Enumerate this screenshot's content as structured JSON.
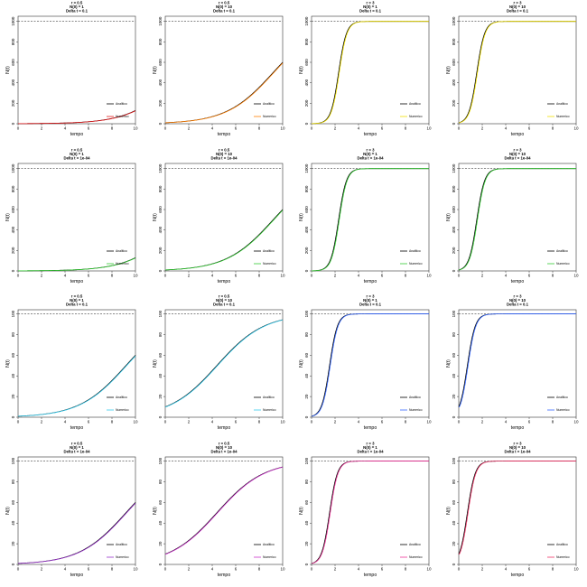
{
  "chart_data": [
    {
      "type": "line",
      "title": [
        "r = 0.5",
        "N(0) = 1",
        "Delta t = 0.1"
      ],
      "xlabel": "tempo",
      "ylabel": "N(t)",
      "xlim": [
        0,
        10
      ],
      "ylim": [
        0,
        1050
      ],
      "x_ticks": [
        0,
        2,
        4,
        6,
        8,
        10
      ],
      "y_ticks": [
        0,
        200,
        400,
        600,
        800,
        1000
      ],
      "K": 1000,
      "r": 0.5,
      "N0": 1,
      "numeric_color": "#e41a1c",
      "legend": [
        "Analitico",
        "Numerico"
      ],
      "legend_position": "bottom-right"
    },
    {
      "type": "line",
      "title": [
        "r = 0.5",
        "N(0) = 10",
        "Delta t = 0.1"
      ],
      "xlabel": "tempo",
      "ylabel": "N(t)",
      "xlim": [
        0,
        10
      ],
      "ylim": [
        0,
        1050
      ],
      "x_ticks": [
        0,
        2,
        4,
        6,
        8,
        10
      ],
      "y_ticks": [
        0,
        200,
        400,
        600,
        800,
        1000
      ],
      "K": 1000,
      "r": 0.5,
      "N0": 10,
      "numeric_color": "#ff7f00",
      "legend": [
        "Analitico",
        "Numerico"
      ],
      "legend_position": "bottom-right"
    },
    {
      "type": "line",
      "title": [
        "r = 3",
        "N(0) = 1",
        "Delta t = 0.1"
      ],
      "xlabel": "tempo",
      "ylabel": "N(t)",
      "xlim": [
        0,
        10
      ],
      "ylim": [
        0,
        1050
      ],
      "x_ticks": [
        0,
        2,
        4,
        6,
        8,
        10
      ],
      "y_ticks": [
        0,
        200,
        400,
        600,
        800,
        1000
      ],
      "K": 1000,
      "r": 3,
      "N0": 1,
      "numeric_color": "#f0e000",
      "legend": [
        "Analitico",
        "Numerico"
      ],
      "legend_position": "bottom-right"
    },
    {
      "type": "line",
      "title": [
        "r = 3",
        "N(0) = 10",
        "Delta t = 0.1"
      ],
      "xlabel": "tempo",
      "ylabel": "N(t)",
      "xlim": [
        0,
        10
      ],
      "ylim": [
        0,
        1050
      ],
      "x_ticks": [
        0,
        2,
        4,
        6,
        8,
        10
      ],
      "y_ticks": [
        0,
        200,
        400,
        600,
        800,
        1000
      ],
      "K": 1000,
      "r": 3,
      "N0": 10,
      "numeric_color": "#f0e000",
      "legend": [
        "Analitico",
        "Numerico"
      ],
      "legend_position": "bottom-right"
    },
    {
      "type": "line",
      "title": [
        "r = 0.5",
        "N(0) = 1",
        "Delta t = 1e-04"
      ],
      "xlabel": "tempo",
      "ylabel": "N(t)",
      "xlim": [
        0,
        10
      ],
      "ylim": [
        0,
        1050
      ],
      "x_ticks": [
        0,
        2,
        4,
        6,
        8,
        10
      ],
      "y_ticks": [
        0,
        200,
        400,
        600,
        800,
        1000
      ],
      "K": 1000,
      "r": 0.5,
      "N0": 1,
      "numeric_color": "#33cc33",
      "legend": [
        "Analitico",
        "Numerico"
      ],
      "legend_position": "bottom-right"
    },
    {
      "type": "line",
      "title": [
        "r = 0.5",
        "N(0) = 10",
        "Delta t = 1e-04"
      ],
      "xlabel": "tempo",
      "ylabel": "N(t)",
      "xlim": [
        0,
        10
      ],
      "ylim": [
        0,
        1050
      ],
      "x_ticks": [
        0,
        2,
        4,
        6,
        8,
        10
      ],
      "y_ticks": [
        0,
        200,
        400,
        600,
        800,
        1000
      ],
      "K": 1000,
      "r": 0.5,
      "N0": 10,
      "numeric_color": "#33cc33",
      "legend": [
        "Analitico",
        "Numerico"
      ],
      "legend_position": "bottom-right"
    },
    {
      "type": "line",
      "title": [
        "r = 3",
        "N(0) = 1",
        "Delta t = 1e-04"
      ],
      "xlabel": "tempo",
      "ylabel": "N(t)",
      "xlim": [
        0,
        10
      ],
      "ylim": [
        0,
        1050
      ],
      "x_ticks": [
        0,
        2,
        4,
        6,
        8,
        10
      ],
      "y_ticks": [
        0,
        200,
        400,
        600,
        800,
        1000
      ],
      "K": 1000,
      "r": 3,
      "N0": 1,
      "numeric_color": "#33cc33",
      "legend": [
        "Analitico",
        "Numerico"
      ],
      "legend_position": "bottom-right"
    },
    {
      "type": "line",
      "title": [
        "r = 3",
        "N(0) = 10",
        "Delta t = 1e-04"
      ],
      "xlabel": "tempo",
      "ylabel": "N(t)",
      "xlim": [
        0,
        10
      ],
      "ylim": [
        0,
        1050
      ],
      "x_ticks": [
        0,
        2,
        4,
        6,
        8,
        10
      ],
      "y_ticks": [
        0,
        200,
        400,
        600,
        800,
        1000
      ],
      "K": 1000,
      "r": 3,
      "N0": 10,
      "numeric_color": "#33cc33",
      "legend": [
        "Analitico",
        "Numerico"
      ],
      "legend_position": "bottom-right"
    },
    {
      "type": "line",
      "title": [
        "r = 0.5",
        "N(0) = 1",
        "Delta t = 0.1"
      ],
      "xlabel": "tempo",
      "ylabel": "N(t)",
      "xlim": [
        0,
        10
      ],
      "ylim": [
        0,
        104
      ],
      "x_ticks": [
        0,
        2,
        4,
        6,
        8,
        10
      ],
      "y_ticks": [
        0,
        20,
        40,
        60,
        80,
        100
      ],
      "K": 100,
      "r": 0.5,
      "N0": 1,
      "numeric_color": "#33ccee",
      "legend": [
        "Analitico",
        "Numerico"
      ],
      "legend_position": "bottom-right"
    },
    {
      "type": "line",
      "title": [
        "r = 0.5",
        "N(0) = 10",
        "Delta t = 0.1"
      ],
      "xlabel": "tempo",
      "ylabel": "N(t)",
      "xlim": [
        0,
        10
      ],
      "ylim": [
        0,
        104
      ],
      "x_ticks": [
        0,
        2,
        4,
        6,
        8,
        10
      ],
      "y_ticks": [
        0,
        20,
        40,
        60,
        80,
        100
      ],
      "K": 100,
      "r": 0.5,
      "N0": 10,
      "numeric_color": "#33ccee",
      "legend": [
        "Analitico",
        "Numerico"
      ],
      "legend_position": "bottom-right"
    },
    {
      "type": "line",
      "title": [
        "r = 3",
        "N(0) = 1",
        "Delta t = 0.1"
      ],
      "xlabel": "tempo",
      "ylabel": "N(t)",
      "xlim": [
        0,
        10
      ],
      "ylim": [
        0,
        104
      ],
      "x_ticks": [
        0,
        2,
        4,
        6,
        8,
        10
      ],
      "y_ticks": [
        0,
        20,
        40,
        60,
        80,
        100
      ],
      "K": 100,
      "r": 3,
      "N0": 1,
      "numeric_color": "#3366ff",
      "legend": [
        "Analitico",
        "Numerico"
      ],
      "legend_position": "bottom-right"
    },
    {
      "type": "line",
      "title": [
        "r = 3",
        "N(0) = 10",
        "Delta t = 0.1"
      ],
      "xlabel": "tempo",
      "ylabel": "N(t)",
      "xlim": [
        0,
        10
      ],
      "ylim": [
        0,
        104
      ],
      "x_ticks": [
        0,
        2,
        4,
        6,
        8,
        10
      ],
      "y_ticks": [
        0,
        20,
        40,
        60,
        80,
        100
      ],
      "K": 100,
      "r": 3,
      "N0": 10,
      "numeric_color": "#3366ff",
      "legend": [
        "Analitico",
        "Numerico"
      ],
      "legend_position": "bottom-right"
    },
    {
      "type": "line",
      "title": [
        "r = 0.5",
        "N(0) = 1",
        "Delta t = 1e-04"
      ],
      "xlabel": "tempo",
      "ylabel": "N(t)",
      "xlim": [
        0,
        10
      ],
      "ylim": [
        0,
        104
      ],
      "x_ticks": [
        0,
        2,
        4,
        6,
        8,
        10
      ],
      "y_ticks": [
        0,
        20,
        40,
        60,
        80,
        100
      ],
      "K": 100,
      "r": 0.5,
      "N0": 1,
      "numeric_color": "#9933cc",
      "legend": [
        "Analitico",
        "Numerico"
      ],
      "legend_position": "bottom-right"
    },
    {
      "type": "line",
      "title": [
        "r = 0.5",
        "N(0) = 10",
        "Delta t = 1e-04"
      ],
      "xlabel": "tempo",
      "ylabel": "N(t)",
      "xlim": [
        0,
        10
      ],
      "ylim": [
        0,
        104
      ],
      "x_ticks": [
        0,
        2,
        4,
        6,
        8,
        10
      ],
      "y_ticks": [
        0,
        20,
        40,
        60,
        80,
        100
      ],
      "K": 100,
      "r": 0.5,
      "N0": 10,
      "numeric_color": "#cc33cc",
      "legend": [
        "Analitico",
        "Numerico"
      ],
      "legend_position": "bottom-right"
    },
    {
      "type": "line",
      "title": [
        "r = 3",
        "N(0) = 1",
        "Delta t = 1e-04"
      ],
      "xlabel": "tempo",
      "ylabel": "N(t)",
      "xlim": [
        0,
        10
      ],
      "ylim": [
        0,
        104
      ],
      "x_ticks": [
        0,
        2,
        4,
        6,
        8,
        10
      ],
      "y_ticks": [
        0,
        20,
        40,
        60,
        80,
        100
      ],
      "K": 100,
      "r": 3,
      "N0": 1,
      "numeric_color": "#ee3399",
      "legend": [
        "Analitico",
        "Numerico"
      ],
      "legend_position": "bottom-right"
    },
    {
      "type": "line",
      "title": [
        "r = 3",
        "N(0) = 10",
        "Delta t = 1e-04"
      ],
      "xlabel": "tempo",
      "ylabel": "N(t)",
      "xlim": [
        0,
        10
      ],
      "ylim": [
        0,
        104
      ],
      "x_ticks": [
        0,
        2,
        4,
        6,
        8,
        10
      ],
      "y_ticks": [
        0,
        20,
        40,
        60,
        80,
        100
      ],
      "K": 100,
      "r": 3,
      "N0": 10,
      "numeric_color": "#ee3366",
      "legend": [
        "Analitico",
        "Numerico"
      ],
      "legend_position": "bottom-right"
    }
  ]
}
